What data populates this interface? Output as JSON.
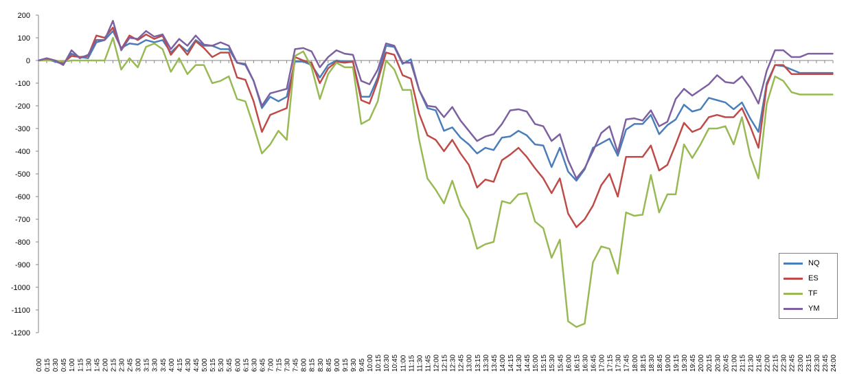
{
  "chart_data": {
    "type": "line",
    "title": "",
    "xlabel": "",
    "ylabel": "",
    "ylim": [
      -1200,
      200
    ],
    "yticks": [
      "200",
      "100",
      "0",
      "-100",
      "-200",
      "-300",
      "-400",
      "-500",
      "-600",
      "-700",
      "-800",
      "-900",
      "-1000",
      "-1100",
      "-1200"
    ],
    "grid": false,
    "legend_position": "bottom-right",
    "x": [
      "0:00",
      "0:15",
      "0:30",
      "0:45",
      "1:00",
      "1:15",
      "1:30",
      "1:45",
      "2:00",
      "2:15",
      "2:30",
      "2:45",
      "3:00",
      "3:15",
      "3:30",
      "3:45",
      "4:00",
      "4:15",
      "4:30",
      "4:45",
      "5:00",
      "5:15",
      "5:30",
      "5:45",
      "6:00",
      "6:15",
      "6:30",
      "6:45",
      "7:00",
      "7:15",
      "7:30",
      "7:45",
      "8:00",
      "8:15",
      "8:30",
      "8:45",
      "9:00",
      "9:15",
      "9:30",
      "9:45",
      "10:00",
      "10:15",
      "10:30",
      "10:45",
      "11:00",
      "11:15",
      "11:30",
      "11:45",
      "12:00",
      "12:15",
      "12:30",
      "12:45",
      "13:00",
      "13:15",
      "13:30",
      "13:45",
      "14:00",
      "14:15",
      "14:30",
      "14:45",
      "15:00",
      "15:15",
      "15:30",
      "15:45",
      "16:00",
      "16:15",
      "16:30",
      "16:45",
      "17:00",
      "17:15",
      "17:30",
      "17:45",
      "18:00",
      "18:15",
      "18:30",
      "18:45",
      "19:00",
      "19:15",
      "19:30",
      "19:45",
      "20:00",
      "20:15",
      "20:30",
      "20:45",
      "21:00",
      "21:15",
      "21:30",
      "21:45",
      "22:00",
      "22:15",
      "22:30",
      "22:45",
      "23:00",
      "23:15",
      "23:30",
      "23:45",
      "24:00"
    ],
    "series": [
      {
        "name": "NQ",
        "color": "#4a7ebb",
        "values": [
          0,
          5,
          -5,
          -15,
          30,
          15,
          10,
          80,
          90,
          130,
          55,
          75,
          70,
          90,
          80,
          90,
          35,
          70,
          40,
          90,
          65,
          65,
          50,
          50,
          -10,
          -20,
          -90,
          -210,
          -160,
          -180,
          -160,
          -5,
          -5,
          -20,
          -75,
          -20,
          0,
          -5,
          -5,
          -160,
          -160,
          -75,
          65,
          60,
          -15,
          5,
          -130,
          -210,
          -220,
          -310,
          -295,
          -340,
          -370,
          -410,
          -385,
          -395,
          -340,
          -335,
          -310,
          -330,
          -370,
          -375,
          -470,
          -385,
          -490,
          -530,
          -480,
          -385,
          -365,
          -345,
          -420,
          -305,
          -280,
          -280,
          -240,
          -325,
          -285,
          -260,
          -195,
          -225,
          -215,
          -165,
          -175,
          -185,
          -215,
          -185,
          -255,
          -315,
          -100,
          -20,
          -25,
          -40,
          -55,
          -55,
          -55,
          -55,
          -55
        ]
      },
      {
        "name": "ES",
        "color": "#be4b48",
        "values": [
          0,
          5,
          0,
          -10,
          20,
          15,
          20,
          110,
          100,
          145,
          50,
          110,
          90,
          115,
          95,
          110,
          25,
          70,
          25,
          85,
          55,
          15,
          35,
          35,
          -75,
          -85,
          -180,
          -315,
          -240,
          -225,
          -210,
          15,
          0,
          -10,
          -100,
          -35,
          -5,
          -10,
          -5,
          -175,
          -190,
          -90,
          35,
          25,
          -65,
          -80,
          -235,
          -330,
          -350,
          -400,
          -350,
          -410,
          -460,
          -560,
          -525,
          -535,
          -440,
          -415,
          -385,
          -425,
          -475,
          -520,
          -585,
          -520,
          -675,
          -735,
          -700,
          -640,
          -550,
          -500,
          -600,
          -425,
          -425,
          -425,
          -375,
          -485,
          -460,
          -370,
          -275,
          -315,
          -300,
          -250,
          -240,
          -250,
          -250,
          -210,
          -290,
          -385,
          -110,
          -20,
          -20,
          -60,
          -60,
          -60,
          -60,
          -60,
          -60
        ]
      },
      {
        "name": "TF",
        "color": "#98b954",
        "values": [
          0,
          0,
          0,
          -5,
          0,
          0,
          0,
          0,
          0,
          100,
          -40,
          10,
          -30,
          60,
          75,
          50,
          -50,
          10,
          -60,
          -20,
          -20,
          -100,
          -90,
          -70,
          -170,
          -180,
          -290,
          -410,
          -370,
          -310,
          -350,
          20,
          40,
          -30,
          -170,
          -60,
          -10,
          -30,
          -30,
          -280,
          -260,
          -180,
          0,
          -40,
          -130,
          -130,
          -350,
          -520,
          -570,
          -630,
          -530,
          -640,
          -700,
          -830,
          -810,
          -800,
          -620,
          -630,
          -590,
          -585,
          -710,
          -740,
          -870,
          -790,
          -1150,
          -1175,
          -1160,
          -890,
          -820,
          -830,
          -940,
          -670,
          -685,
          -680,
          -505,
          -670,
          -590,
          -590,
          -370,
          -430,
          -370,
          -300,
          -300,
          -290,
          -370,
          -250,
          -420,
          -520,
          -190,
          -70,
          -90,
          -140,
          -150,
          -150,
          -150,
          -150,
          -150
        ]
      },
      {
        "name": "YM",
        "color": "#7d60a0",
        "values": [
          0,
          10,
          0,
          -20,
          45,
          10,
          25,
          90,
          90,
          175,
          45,
          100,
          95,
          130,
          105,
          115,
          50,
          95,
          65,
          110,
          70,
          65,
          80,
          65,
          -10,
          -15,
          -90,
          -200,
          -145,
          -135,
          -125,
          50,
          55,
          40,
          -30,
          15,
          45,
          30,
          25,
          -90,
          -105,
          -40,
          75,
          65,
          -10,
          -10,
          -130,
          -200,
          -205,
          -250,
          -205,
          -265,
          -310,
          -355,
          -335,
          -325,
          -280,
          -220,
          -215,
          -225,
          -280,
          -290,
          -355,
          -325,
          -440,
          -520,
          -475,
          -400,
          -320,
          -290,
          -405,
          -260,
          -255,
          -265,
          -220,
          -290,
          -270,
          -170,
          -125,
          -155,
          -130,
          -105,
          -65,
          -95,
          -100,
          -70,
          -120,
          -190,
          -45,
          45,
          45,
          15,
          15,
          30,
          30,
          30,
          30
        ]
      }
    ]
  }
}
